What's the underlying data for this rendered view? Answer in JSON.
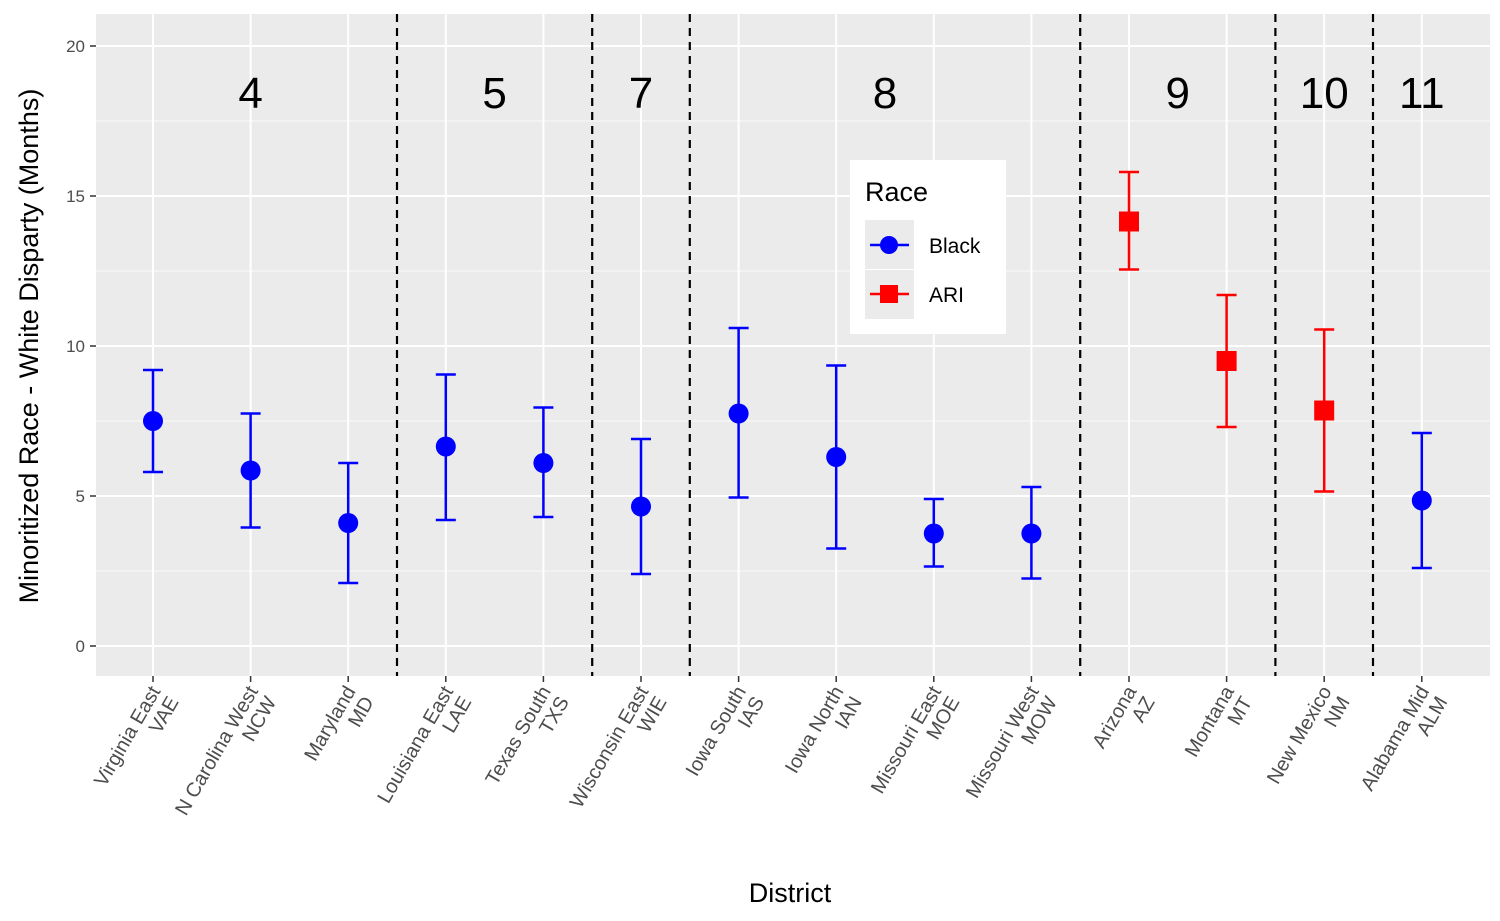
{
  "chart_data": {
    "type": "scatter",
    "title": "",
    "xlabel": "District",
    "ylabel": "Minoritized Race - White Disparty (Months)",
    "ylim": [
      -1,
      20.5
    ],
    "yticks": [
      0,
      5,
      10,
      15,
      20
    ],
    "grid": true,
    "legend": {
      "title": "Race",
      "placement": "top-center",
      "entries": [
        {
          "name": "Black",
          "color": "#0000ff",
          "shape": "circle"
        },
        {
          "name": "ARI",
          "color": "#ff0000",
          "shape": "square"
        }
      ]
    },
    "categories": [
      {
        "line1": "Virginia East",
        "line2": "VAE"
      },
      {
        "line1": "N Carolina West",
        "line2": "NCW"
      },
      {
        "line1": "Maryland",
        "line2": "MD"
      },
      {
        "line1": "Louisiana East",
        "line2": "LAE"
      },
      {
        "line1": "Texas South",
        "line2": "TXS"
      },
      {
        "line1": "Wisconsin East",
        "line2": "WIE"
      },
      {
        "line1": "Iowa South",
        "line2": "IAS"
      },
      {
        "line1": "Iowa North",
        "line2": "IAN"
      },
      {
        "line1": "Missouri East",
        "line2": "MOE"
      },
      {
        "line1": "Missouri West",
        "line2": "MOW"
      },
      {
        "line1": "Arizona",
        "line2": "AZ"
      },
      {
        "line1": "Montana",
        "line2": "MT"
      },
      {
        "line1": "New Mexico",
        "line2": "NM"
      },
      {
        "line1": "Alabama Mid",
        "line2": "ALM"
      }
    ],
    "points": [
      {
        "district": "VAE",
        "race": "Black",
        "estimate": 7.5,
        "lower": 5.8,
        "upper": 9.2
      },
      {
        "district": "NCW",
        "race": "Black",
        "estimate": 5.85,
        "lower": 3.95,
        "upper": 7.75
      },
      {
        "district": "MD",
        "race": "Black",
        "estimate": 4.1,
        "lower": 2.1,
        "upper": 6.1
      },
      {
        "district": "LAE",
        "race": "Black",
        "estimate": 6.65,
        "lower": 4.2,
        "upper": 9.05
      },
      {
        "district": "TXS",
        "race": "Black",
        "estimate": 6.1,
        "lower": 4.3,
        "upper": 7.95
      },
      {
        "district": "WIE",
        "race": "Black",
        "estimate": 4.65,
        "lower": 2.4,
        "upper": 6.9
      },
      {
        "district": "IAS",
        "race": "Black",
        "estimate": 7.75,
        "lower": 4.95,
        "upper": 10.6
      },
      {
        "district": "IAN",
        "race": "Black",
        "estimate": 6.3,
        "lower": 3.25,
        "upper": 9.35
      },
      {
        "district": "MOE",
        "race": "Black",
        "estimate": 3.75,
        "lower": 2.65,
        "upper": 4.9
      },
      {
        "district": "MOW",
        "race": "Black",
        "estimate": 3.75,
        "lower": 2.25,
        "upper": 5.3
      },
      {
        "district": "AZ",
        "race": "ARI",
        "estimate": 14.15,
        "lower": 12.55,
        "upper": 15.8
      },
      {
        "district": "MT",
        "race": "ARI",
        "estimate": 9.5,
        "lower": 7.3,
        "upper": 11.7
      },
      {
        "district": "NM",
        "race": "ARI",
        "estimate": 7.85,
        "lower": 5.15,
        "upper": 10.55
      },
      {
        "district": "ALM",
        "race": "Black",
        "estimate": 4.85,
        "lower": 2.6,
        "upper": 7.1
      }
    ],
    "circuits": [
      {
        "label": "4",
        "first": 0,
        "last": 2
      },
      {
        "label": "5",
        "first": 3,
        "last": 4
      },
      {
        "label": "7",
        "first": 5,
        "last": 5
      },
      {
        "label": "8",
        "first": 6,
        "last": 9
      },
      {
        "label": "9",
        "first": 10,
        "last": 11
      },
      {
        "label": "10",
        "first": 12,
        "last": 12
      },
      {
        "label": "11",
        "first": 13,
        "last": 13
      }
    ],
    "colors": {
      "panel": "#ebebeb",
      "grid": "#ffffff",
      "Black": "#0000ff",
      "ARI": "#ff0000"
    }
  }
}
